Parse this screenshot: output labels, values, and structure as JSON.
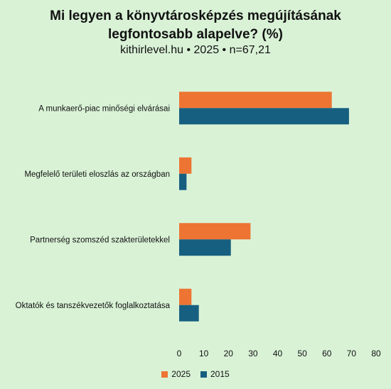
{
  "chart_data": {
    "type": "bar",
    "orientation": "horizontal",
    "title": "Mi legyen a könyvtárosképzés megújításának legfontosabb alapelve? (%)",
    "subtitle": "kithirlevel.hu • 2025 • n=67,21",
    "categories": [
      "A munkaerő-piac minőségi elvárásai",
      "Megfelelő területi eloszlás az országban",
      "Partnerség szomszéd szakterületekkel",
      "Oktatók és tanszékvezetők foglalkoztatása"
    ],
    "series": [
      {
        "name": "2025",
        "color": "#ed7433",
        "values": [
          62,
          5,
          29,
          5
        ]
      },
      {
        "name": "2015",
        "color": "#175f80",
        "values": [
          69,
          3,
          21,
          8
        ]
      }
    ],
    "xlim": [
      0,
      80
    ],
    "xticks": [
      "0",
      "10",
      "20",
      "30",
      "40",
      "50",
      "60",
      "70",
      "80"
    ],
    "grid": false,
    "legend_position": "bottom"
  }
}
